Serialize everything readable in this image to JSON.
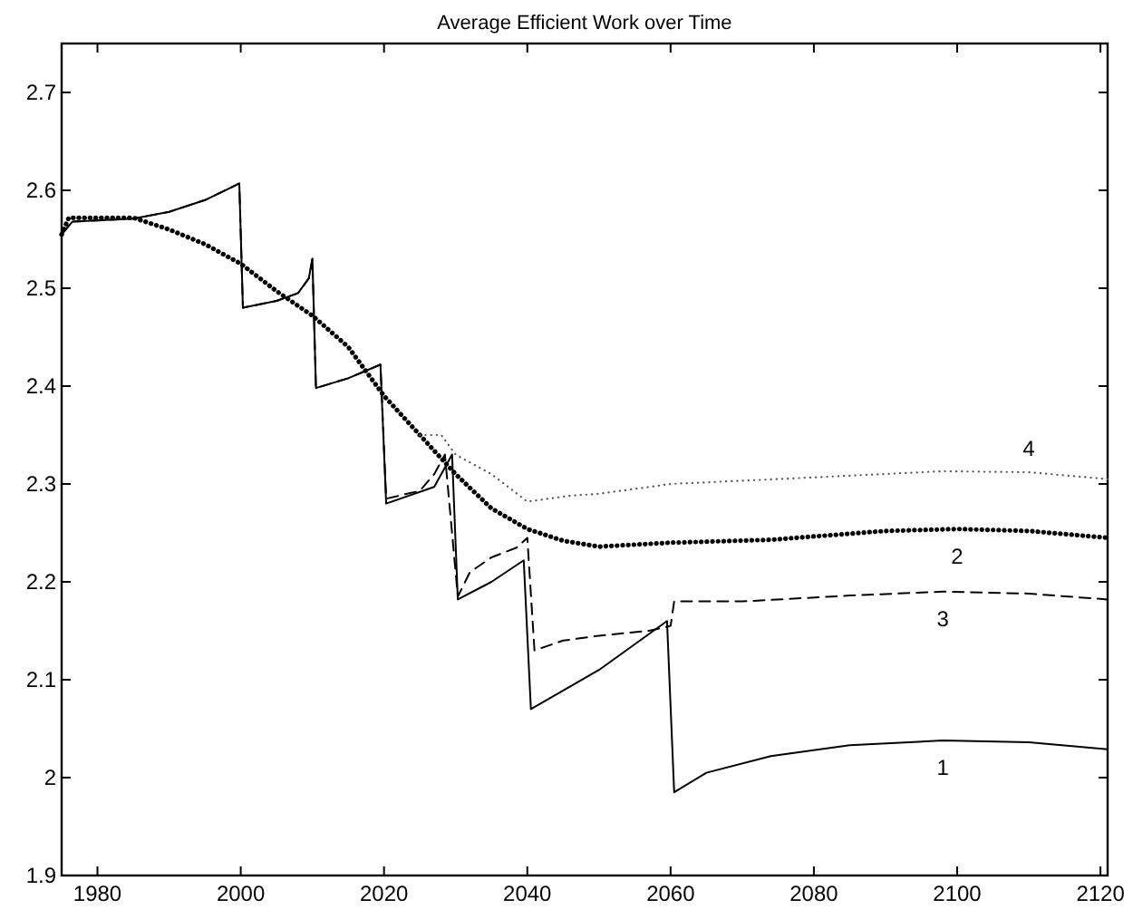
{
  "chart_data": {
    "type": "line",
    "title": "Average Efficient Work over Time",
    "xlim": [
      1975,
      2121
    ],
    "ylim": [
      1.9,
      2.75
    ],
    "xticks": [
      1980,
      2000,
      2020,
      2040,
      2060,
      2080,
      2100,
      2120
    ],
    "yticks": [
      1.9,
      2,
      2.1,
      2.2,
      2.3,
      2.4,
      2.5,
      2.6,
      2.7
    ],
    "grid": false,
    "series": [
      {
        "name": "1",
        "color": "#000000",
        "line_style": "solid",
        "x": [
          1975,
          1976.5,
          1985,
          1990,
          1995,
          1999.8,
          2000.3,
          2005,
          2008,
          2009.5,
          2010,
          2010.5,
          2015,
          2019.5,
          2020.3,
          2027,
          2029.5,
          2030.3,
          2035,
          2039.5,
          2040.5,
          2050,
          2059.5,
          2060.5,
          2065,
          2074,
          2085,
          2098,
          2110,
          2121
        ],
        "values": [
          2.555,
          2.568,
          2.571,
          2.578,
          2.59,
          2.607,
          2.48,
          2.487,
          2.495,
          2.51,
          2.53,
          2.398,
          2.408,
          2.422,
          2.28,
          2.297,
          2.33,
          2.182,
          2.2,
          2.222,
          2.07,
          2.11,
          2.16,
          1.985,
          2.005,
          2.022,
          2.033,
          2.038,
          2.036,
          2.029
        ]
      },
      {
        "name": "2",
        "color": "#000000",
        "line_style": "dotted",
        "x": [
          1975,
          1976,
          1985,
          1990,
          1995,
          2000,
          2005,
          2010,
          2015,
          2020,
          2025,
          2030,
          2035,
          2040,
          2045,
          2050,
          2060,
          2074,
          2090,
          2100,
          2110,
          2121
        ],
        "values": [
          2.555,
          2.572,
          2.572,
          2.56,
          2.545,
          2.525,
          2.497,
          2.472,
          2.44,
          2.39,
          2.35,
          2.31,
          2.275,
          2.254,
          2.242,
          2.236,
          2.24,
          2.243,
          2.252,
          2.254,
          2.252,
          2.245
        ]
      },
      {
        "name": "3",
        "color": "#000000",
        "line_style": "dashed",
        "x": [
          1975,
          1976.5,
          1985,
          1990,
          1995,
          1999.8,
          2000.3,
          2005,
          2008,
          2009.5,
          2010,
          2010.5,
          2015,
          2019.5,
          2020.3,
          2025,
          2027,
          2028.5,
          2030.3,
          2032,
          2035,
          2038.5,
          2040,
          2041,
          2045,
          2050,
          2057,
          2060,
          2060.5,
          2070,
          2085,
          2098,
          2110,
          2121
        ],
        "values": [
          2.555,
          2.568,
          2.571,
          2.578,
          2.59,
          2.607,
          2.48,
          2.487,
          2.495,
          2.51,
          2.53,
          2.398,
          2.408,
          2.422,
          2.285,
          2.293,
          2.31,
          2.33,
          2.185,
          2.21,
          2.225,
          2.235,
          2.245,
          2.13,
          2.14,
          2.145,
          2.15,
          2.155,
          2.18,
          2.18,
          2.186,
          2.19,
          2.188,
          2.182
        ]
      },
      {
        "name": "4",
        "color": "#555555",
        "line_style": "dotted",
        "x": [
          2025,
          2028,
          2030,
          2035,
          2040,
          2046,
          2050,
          2060,
          2075,
          2098,
          2110,
          2121
        ],
        "values": [
          2.35,
          2.35,
          2.33,
          2.31,
          2.282,
          2.288,
          2.29,
          2.3,
          2.305,
          2.313,
          2.312,
          2.305
        ]
      }
    ]
  }
}
